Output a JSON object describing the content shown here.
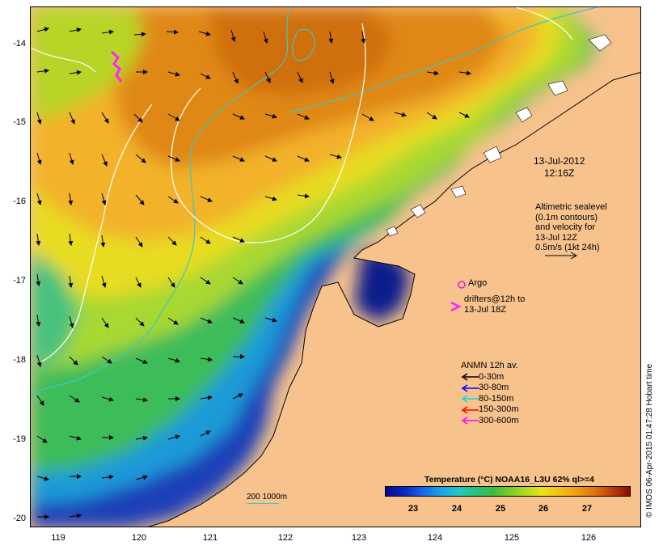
{
  "axes": {
    "lat_labels": [
      "-14",
      "-15",
      "-16",
      "-17",
      "-18",
      "-19",
      "-20"
    ],
    "lon_labels": [
      "119",
      "120",
      "121",
      "122",
      "123",
      "124",
      "125",
      "126"
    ]
  },
  "annotations": {
    "date_line1": "13-Jul-2012",
    "date_line2": "12:16Z",
    "altimetry_lines": [
      "Altimetric sealevel",
      "(0.1m contours)",
      "and velocity for",
      "13-Jul 12Z",
      "0.5m/s (1kt 24h)"
    ],
    "argo_label": "Argo",
    "drifters_line1": "drifters@12h to",
    "drifters_line2": "13-Jul 18Z",
    "anmn_title": "ANMN 12h av.",
    "anmn_items": [
      {
        "label": "0-30m",
        "color": "#000000"
      },
      {
        "label": "30-80m",
        "color": "#0000ff"
      },
      {
        "label": "80-150m",
        "color": "#00e0e0"
      },
      {
        "label": "150-300m",
        "color": "#ff0000"
      },
      {
        "label": "300-600m",
        "color": "#ff00ff"
      }
    ],
    "scale_bar": "200  1000m"
  },
  "colorbar": {
    "title": "Temperature (°C) NOAA16_L3U 62% ql>=4",
    "ticks": [
      "23",
      "24",
      "25",
      "26",
      "27"
    ]
  },
  "credit": "© IMOS 06-Apr-2015 01:47:28 Hobart time",
  "colors": {
    "land": "#f7c28c",
    "contour_cyan": "#3ec8c0",
    "contour_white": "#ffffff",
    "argo": "#cc33cc",
    "drifter": "#ff22ff"
  }
}
